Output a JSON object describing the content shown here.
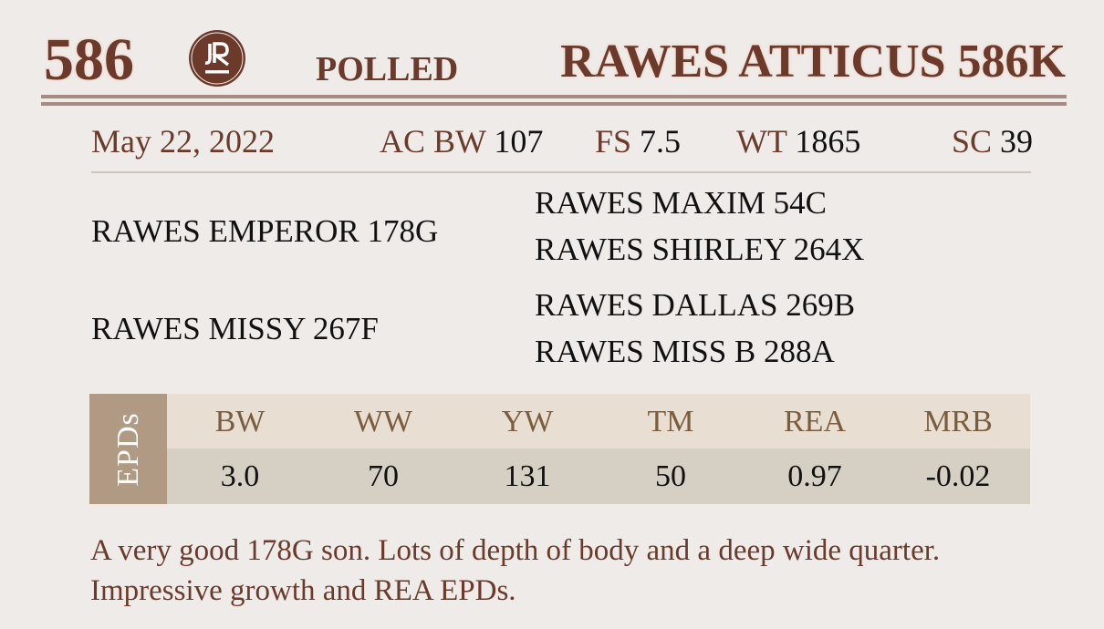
{
  "header": {
    "lot_number": "586",
    "logo_text": "JR",
    "horn_status": "POLLED",
    "animal_name": "RAWES ATTICUS 586K"
  },
  "info": {
    "birth_date": "May 22, 2022",
    "items": [
      {
        "label": "AC BW",
        "value": "107"
      },
      {
        "label": "FS",
        "value": "7.5"
      },
      {
        "label": "WT",
        "value": "1865"
      },
      {
        "label": "SC",
        "value": "39"
      }
    ]
  },
  "pedigree": {
    "sire": "RAWES EMPEROR 178G",
    "sire_sire": "RAWES MAXIM 54C",
    "sire_dam": "RAWES SHIRLEY 264X",
    "dam": "RAWES MISSY 267F",
    "dam_sire": "RAWES DALLAS 269B",
    "dam_dam": "RAWES MISS B 288A"
  },
  "epds": {
    "label": "EPDs",
    "headers": [
      "BW",
      "WW",
      "YW",
      "TM",
      "REA",
      "MRB"
    ],
    "values": [
      "3.0",
      "70",
      "131",
      "50",
      "0.97",
      "-0.02"
    ]
  },
  "description": "A very good 178G son. Lots of depth of body and a deep wide quarter. Impressive growth and REA EPDs.",
  "colors": {
    "brand": "#6b3a2a",
    "rule": "#a58c80",
    "epd_label_bg": "#b09a84",
    "epd_header_bg": "#e8dfd2",
    "epd_values_bg": "#d6cfc3"
  }
}
